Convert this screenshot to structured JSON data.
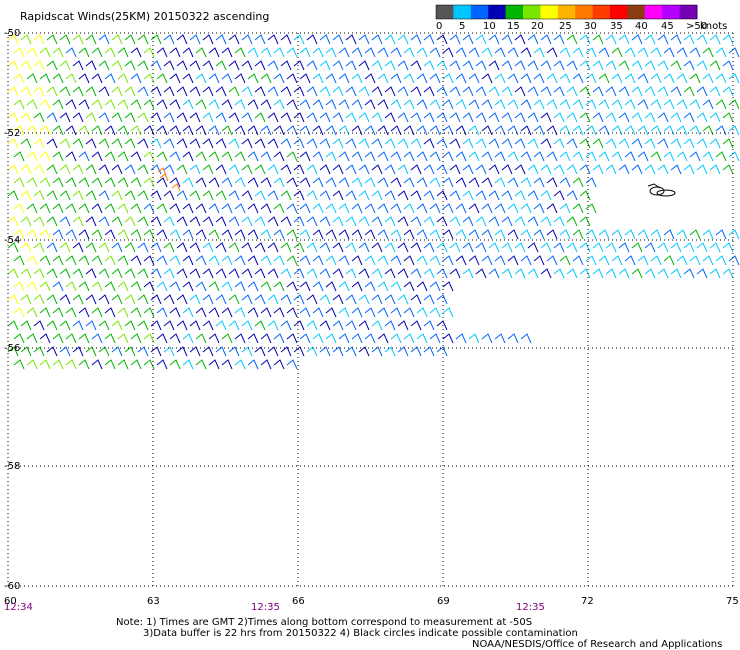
{
  "header": {
    "title": "Rapidscat Winds(25KM) 20150322 ascending"
  },
  "legend": {
    "colors": [
      "#555555",
      "#00c8ff",
      "#0064ff",
      "#0000b4",
      "#00b400",
      "#78e600",
      "#ffff00",
      "#ffb400",
      "#ff7800",
      "#ff3c00",
      "#ff0000",
      "#8c3c14",
      "#ff00ff",
      "#b400ff",
      "#7800b4"
    ],
    "labels": [
      "0",
      "5",
      "10",
      "15",
      "20",
      "25",
      "30",
      "35",
      "40",
      "45",
      ">50"
    ],
    "units": "knots"
  },
  "map": {
    "lon_labels": [
      "60",
      "63",
      "66",
      "69",
      "72",
      "75"
    ],
    "lat_labels": [
      "-50",
      "-52",
      "-54",
      "-56",
      "-58",
      "-60"
    ],
    "times": [
      "12:34",
      "12:35",
      "12:35"
    ]
  },
  "footer": {
    "note_line1": "Note: 1) Times are GMT 2)Times along bottom correspond to measurement at -50S",
    "note_line2": "3)Data buffer is 22 hrs from 20150322 4) Black circles indicate possible contamination",
    "credit": "NOAA/NESDIS/Office of Research and Applications"
  }
}
